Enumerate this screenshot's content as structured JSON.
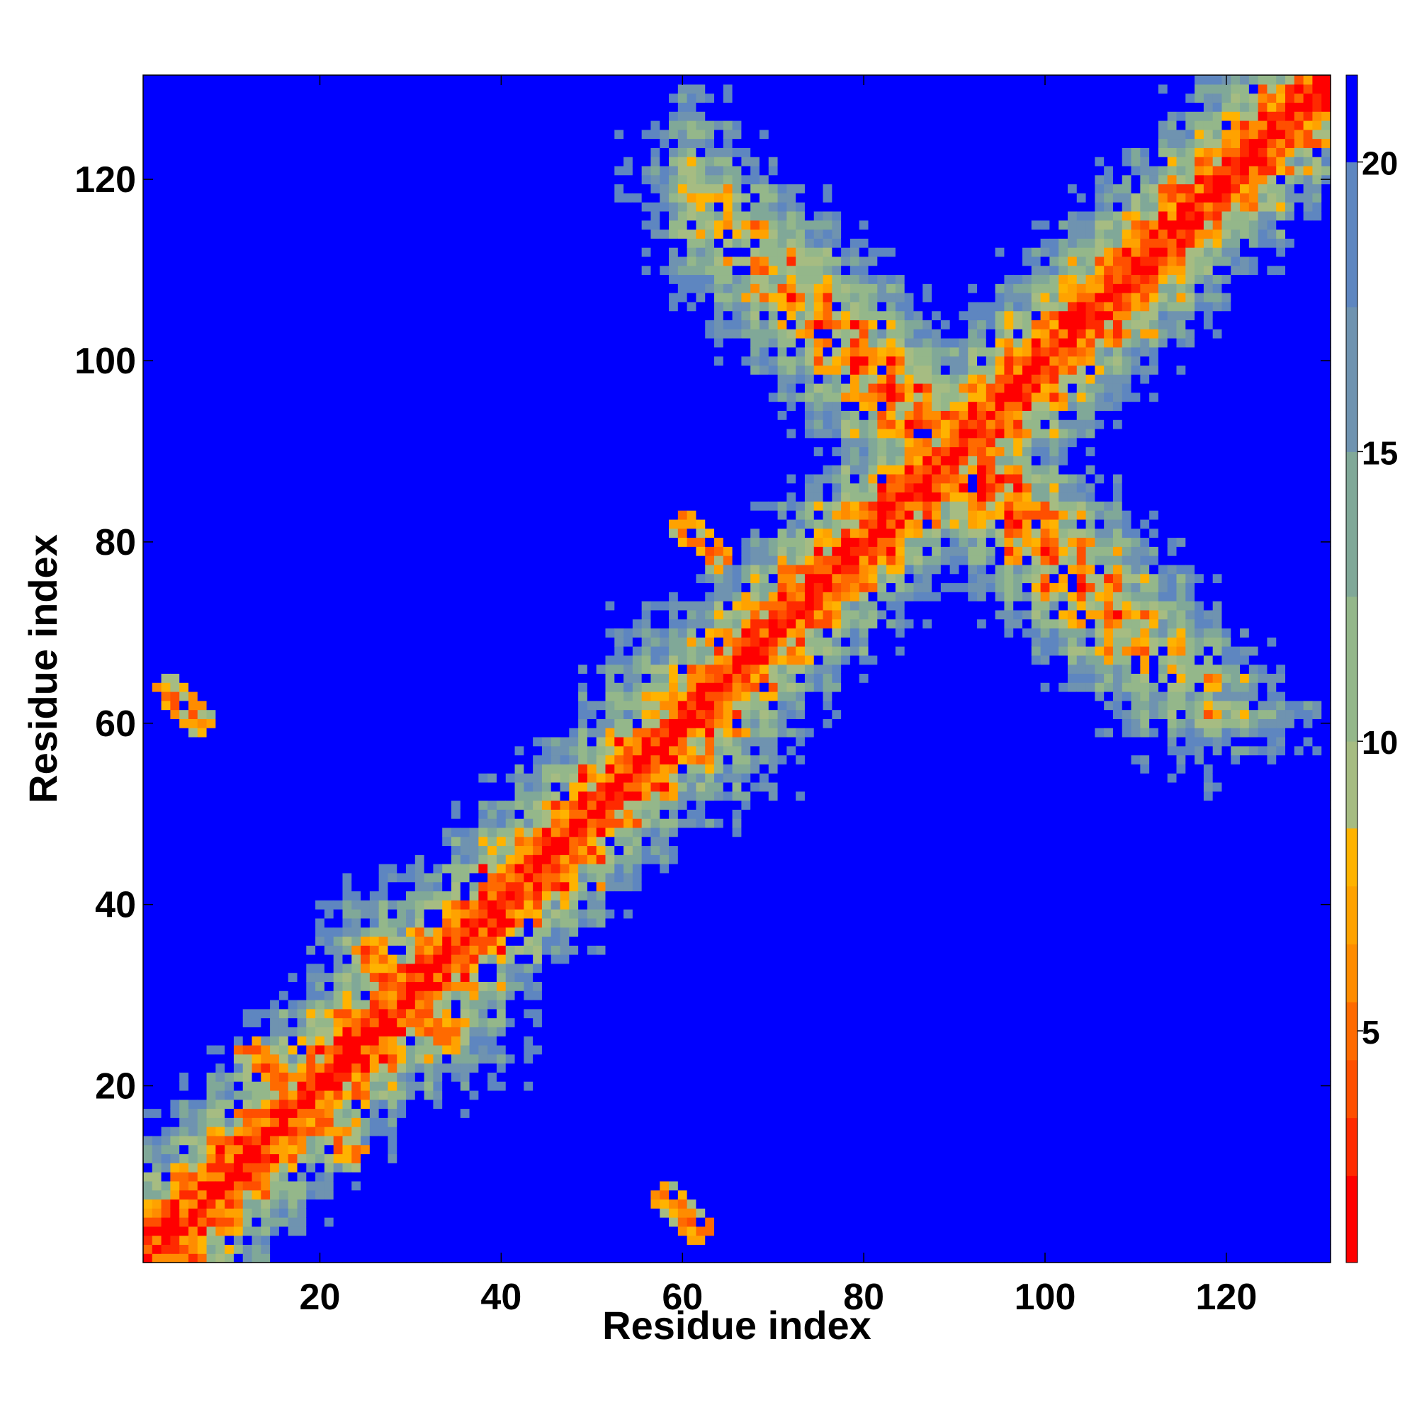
{
  "chart_data": {
    "type": "heatmap",
    "title": "",
    "xlabel": "Residue index",
    "ylabel": "Residue index",
    "n_residues": 131,
    "xlim": [
      0.5,
      131.5
    ],
    "ylim": [
      0.5,
      131.5
    ],
    "x_ticks": [
      20,
      40,
      60,
      80,
      100,
      120
    ],
    "y_ticks": [
      20,
      40,
      60,
      80,
      100,
      120
    ],
    "colorbar": {
      "range": [
        1,
        21.5
      ],
      "ticks": [
        5,
        10,
        15,
        20
      ],
      "boundaries": [
        1,
        2.5,
        3.5,
        4.5,
        5.5,
        6.5,
        7.5,
        8.5,
        10,
        12.5,
        15,
        17.5,
        20,
        21.5
      ],
      "colors": [
        "#ff0000",
        "#ff2a00",
        "#ff4f00",
        "#ff6a00",
        "#ff8c00",
        "#ffa200",
        "#ffb300",
        "#a6bc82",
        "#94b78a",
        "#80a898",
        "#6f93b0",
        "#5e86c0",
        "#0000ff"
      ]
    },
    "scale_value": "distance between residues (>20 shown in blue)",
    "features": {
      "diagonal": "minimum value along i=j",
      "helix_band_segments": [
        [
          1,
          30
        ],
        [
          30,
          60
        ],
        [
          60,
          90
        ],
        [
          90,
          131
        ]
      ],
      "antiparallel_contacts": [
        {
          "center": [
            18,
            18
          ],
          "span": 14
        },
        {
          "center": [
            30,
            30
          ],
          "span": 12
        },
        {
          "center": [
            62,
            80
          ],
          "span": 6
        },
        {
          "center": [
            5,
            62
          ],
          "span": 6
        },
        {
          "center": [
            60,
            6
          ],
          "span": 6
        }
      ]
    }
  }
}
